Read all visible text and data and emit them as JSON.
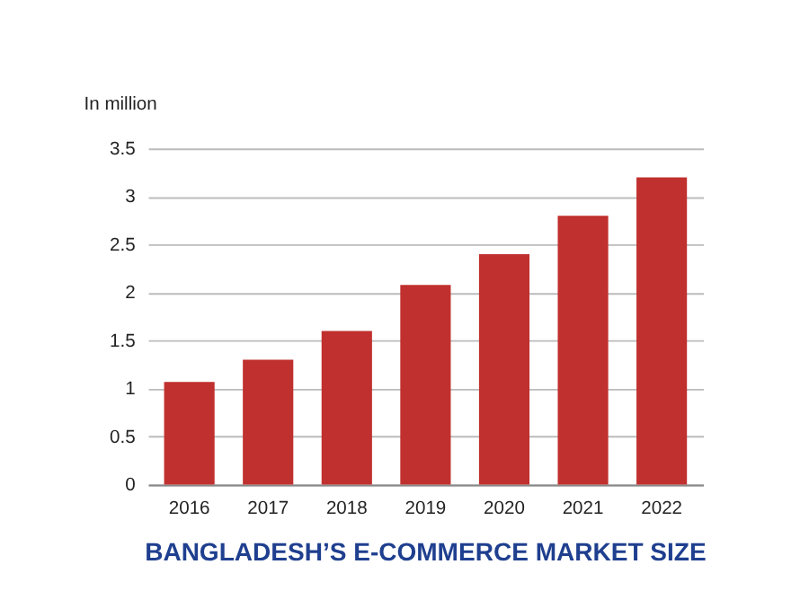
{
  "chart_data": {
    "type": "bar",
    "title": "BANGLADESH’S E-COMMERCE MARKET SIZE",
    "annotations": [
      "In million"
    ],
    "categories": [
      "2016",
      "2017",
      "2018",
      "2019",
      "2020",
      "2021",
      "2022"
    ],
    "values": [
      1.07,
      1.3,
      1.6,
      2.08,
      2.4,
      2.8,
      3.2
    ],
    "color": "#c0302e",
    "ylim": [
      0,
      3.5
    ],
    "yticks": [
      0,
      0.5,
      1,
      1.5,
      2,
      2.5,
      3,
      3.5
    ],
    "grid": "y"
  }
}
